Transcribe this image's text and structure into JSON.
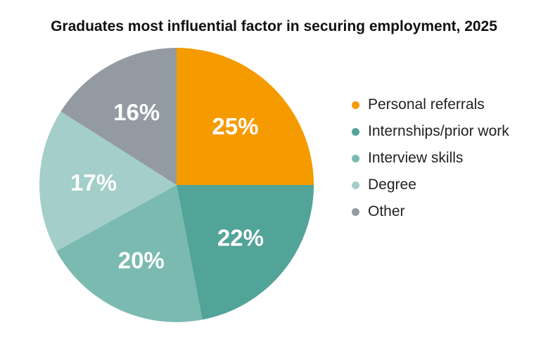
{
  "chart_data": {
    "type": "pie",
    "title": "Graduates most influential factor in securing employment, 2025",
    "categories": [
      "Personal referrals",
      "Internships/prior work",
      "Interview skills",
      "Degree",
      "Other"
    ],
    "values": [
      25,
      22,
      20,
      17,
      16
    ],
    "value_labels": [
      "25%",
      "22%",
      "20%",
      "17%",
      "16%"
    ],
    "colors": [
      "#F59B00",
      "#52A398",
      "#7BBAB1",
      "#A3CEC9",
      "#949AA2"
    ],
    "start_angle": "12 o'clock",
    "direction": "clockwise",
    "legend_position": "right"
  }
}
